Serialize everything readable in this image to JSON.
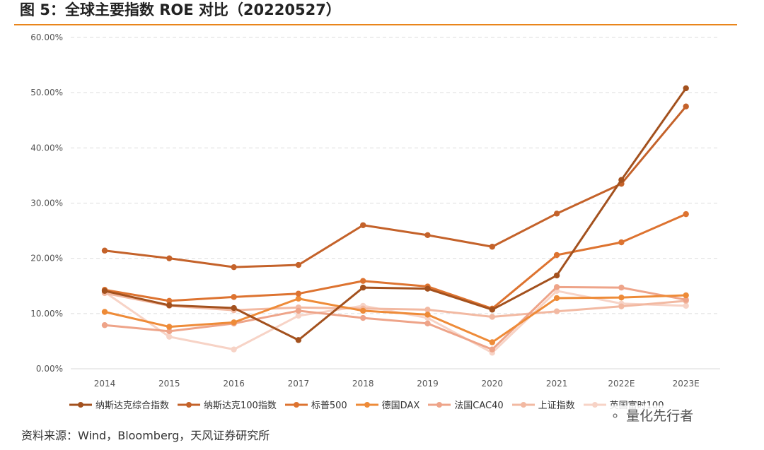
{
  "title": "图 5：全球主要指数 ROE 对比（20220527）",
  "source": "资料来源：Wind，Bloomberg，天风证券研究所",
  "watermark": {
    "icon": "wechat-icon",
    "text": "量化先行者"
  },
  "colors": {
    "rule": "#E9851B"
  },
  "chart_data": {
    "type": "line",
    "title": "",
    "xlabel": "",
    "ylabel": "",
    "categories": [
      "2014",
      "2015",
      "2016",
      "2017",
      "2018",
      "2019",
      "2020",
      "2021",
      "2022E",
      "2023E"
    ],
    "ylim": [
      0,
      60
    ],
    "yticks": [
      "0.00%",
      "10.00%",
      "20.00%",
      "30.00%",
      "40.00%",
      "50.00%",
      "60.00%"
    ],
    "grid": "horizontal dashed",
    "legend_position": "bottom",
    "series": [
      {
        "name": "纳斯达克综合指数",
        "color": "#A3511E",
        "values": [
          14.1,
          11.5,
          11.0,
          5.2,
          14.7,
          14.5,
          10.7,
          16.9,
          34.2,
          50.8
        ]
      },
      {
        "name": "纳斯达克100指数",
        "color": "#C4622A",
        "values": [
          21.4,
          20.0,
          18.4,
          18.8,
          26.0,
          24.2,
          22.1,
          28.1,
          33.5,
          47.5
        ]
      },
      {
        "name": "标普500",
        "color": "#DD7330",
        "values": [
          14.3,
          12.3,
          13.0,
          13.6,
          15.9,
          14.9,
          10.9,
          20.6,
          22.9,
          28.0
        ]
      },
      {
        "name": "德国DAX",
        "color": "#EE8B38",
        "values": [
          10.3,
          7.6,
          8.4,
          12.7,
          10.5,
          9.8,
          4.8,
          12.8,
          12.9,
          13.3
        ]
      },
      {
        "name": "法国CAC40",
        "color": "#EEA489",
        "values": [
          7.9,
          6.8,
          8.2,
          10.5,
          9.2,
          8.2,
          3.5,
          14.8,
          14.7,
          12.5
        ]
      },
      {
        "name": "上证指数",
        "color": "#F2B9A2",
        "values": [
          13.7,
          11.4,
          10.6,
          11.1,
          10.9,
          10.7,
          9.4,
          10.4,
          11.3,
          12.3
        ]
      },
      {
        "name": "英国富时100",
        "color": "#F7D3C6",
        "values": [
          13.9,
          5.8,
          3.5,
          9.6,
          11.4,
          9.2,
          2.9,
          14.1,
          11.8,
          11.4
        ]
      }
    ]
  }
}
